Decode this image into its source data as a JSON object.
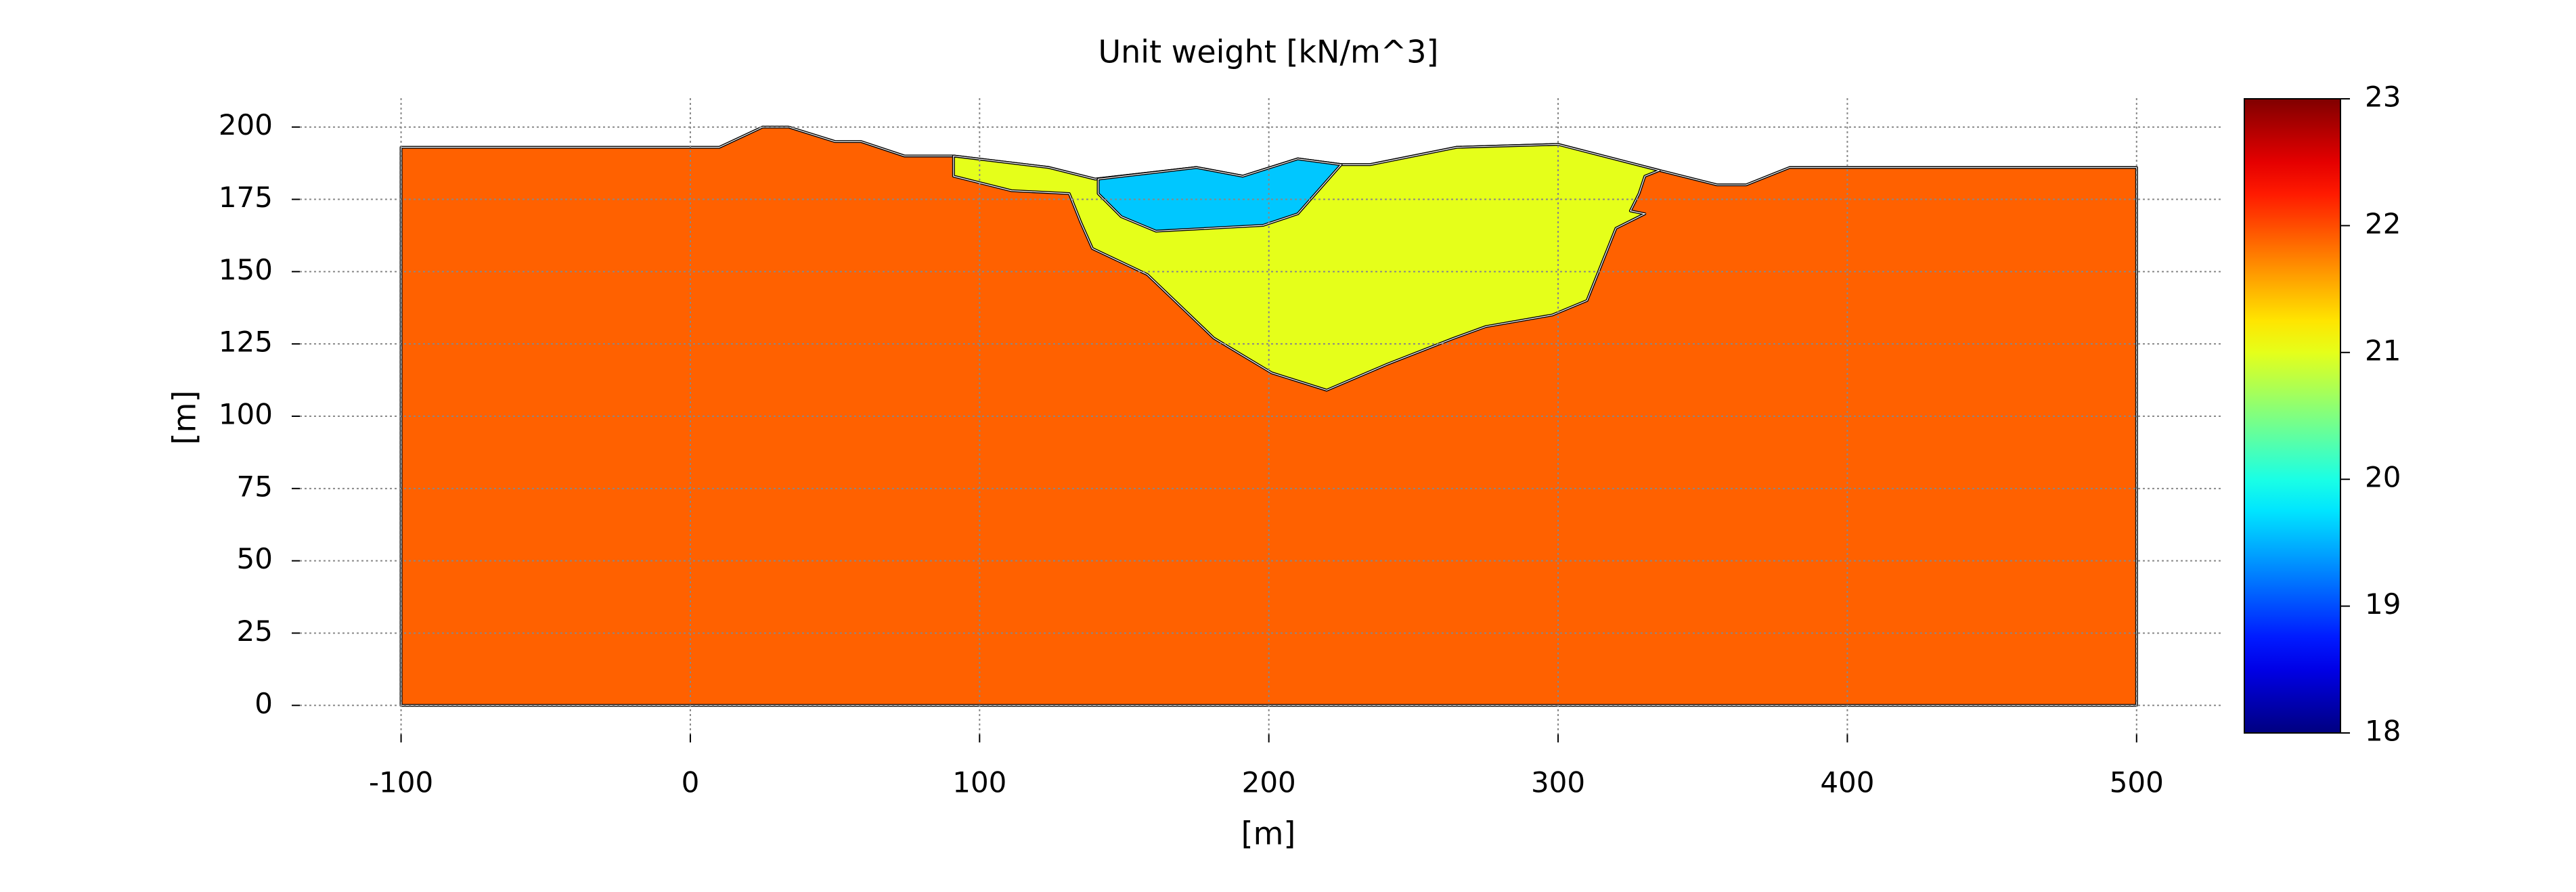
{
  "chart_data": {
    "type": "section",
    "title": "Unit weight [kN/m^3]",
    "xlabel": "[m]",
    "ylabel": "[m]",
    "xlim": [
      -135,
      530
    ],
    "ylim": [
      -10,
      210
    ],
    "xticks": [
      -100,
      0,
      100,
      200,
      300,
      400,
      500
    ],
    "yticks": [
      0,
      25,
      50,
      75,
      100,
      125,
      150,
      175,
      200
    ],
    "grid": true,
    "colormap": "jet",
    "clim": [
      18,
      23
    ],
    "cticks": [
      18,
      19,
      20,
      21,
      22,
      23
    ],
    "regions": [
      {
        "value": 21.9,
        "x": [
          -100,
          -100,
          10,
          25,
          34,
          50,
          59,
          74,
          91,
          124,
          140,
          175,
          191,
          210,
          225,
          235,
          265,
          300,
          335,
          355,
          365,
          380,
          500,
          500
        ],
        "y": [
          0,
          193,
          193,
          200,
          200,
          195,
          195,
          190,
          190,
          186,
          182,
          186,
          183,
          189,
          187,
          187,
          193,
          194,
          185,
          180,
          180,
          186,
          186,
          0
        ]
      },
      {
        "value": 21,
        "x": [
          91,
          124,
          140,
          175,
          191,
          210,
          225,
          235,
          265,
          300,
          335,
          330,
          328,
          325,
          330,
          320,
          310,
          298,
          275,
          264,
          241,
          220,
          201,
          181,
          158,
          139,
          135,
          131,
          111,
          91
        ],
        "y": [
          190,
          186,
          182,
          186,
          183,
          189,
          187,
          187,
          193,
          194,
          185,
          183,
          177,
          171,
          170,
          165,
          140,
          135,
          131,
          127,
          118,
          109,
          115,
          127,
          149,
          158,
          167,
          177,
          178,
          183
        ]
      },
      {
        "value": 19.6,
        "x": [
          141,
          175,
          191,
          210,
          225,
          210,
          198,
          161,
          149,
          141
        ],
        "y": [
          182,
          186,
          183,
          189,
          187,
          170,
          166,
          164,
          169,
          177
        ]
      }
    ]
  }
}
